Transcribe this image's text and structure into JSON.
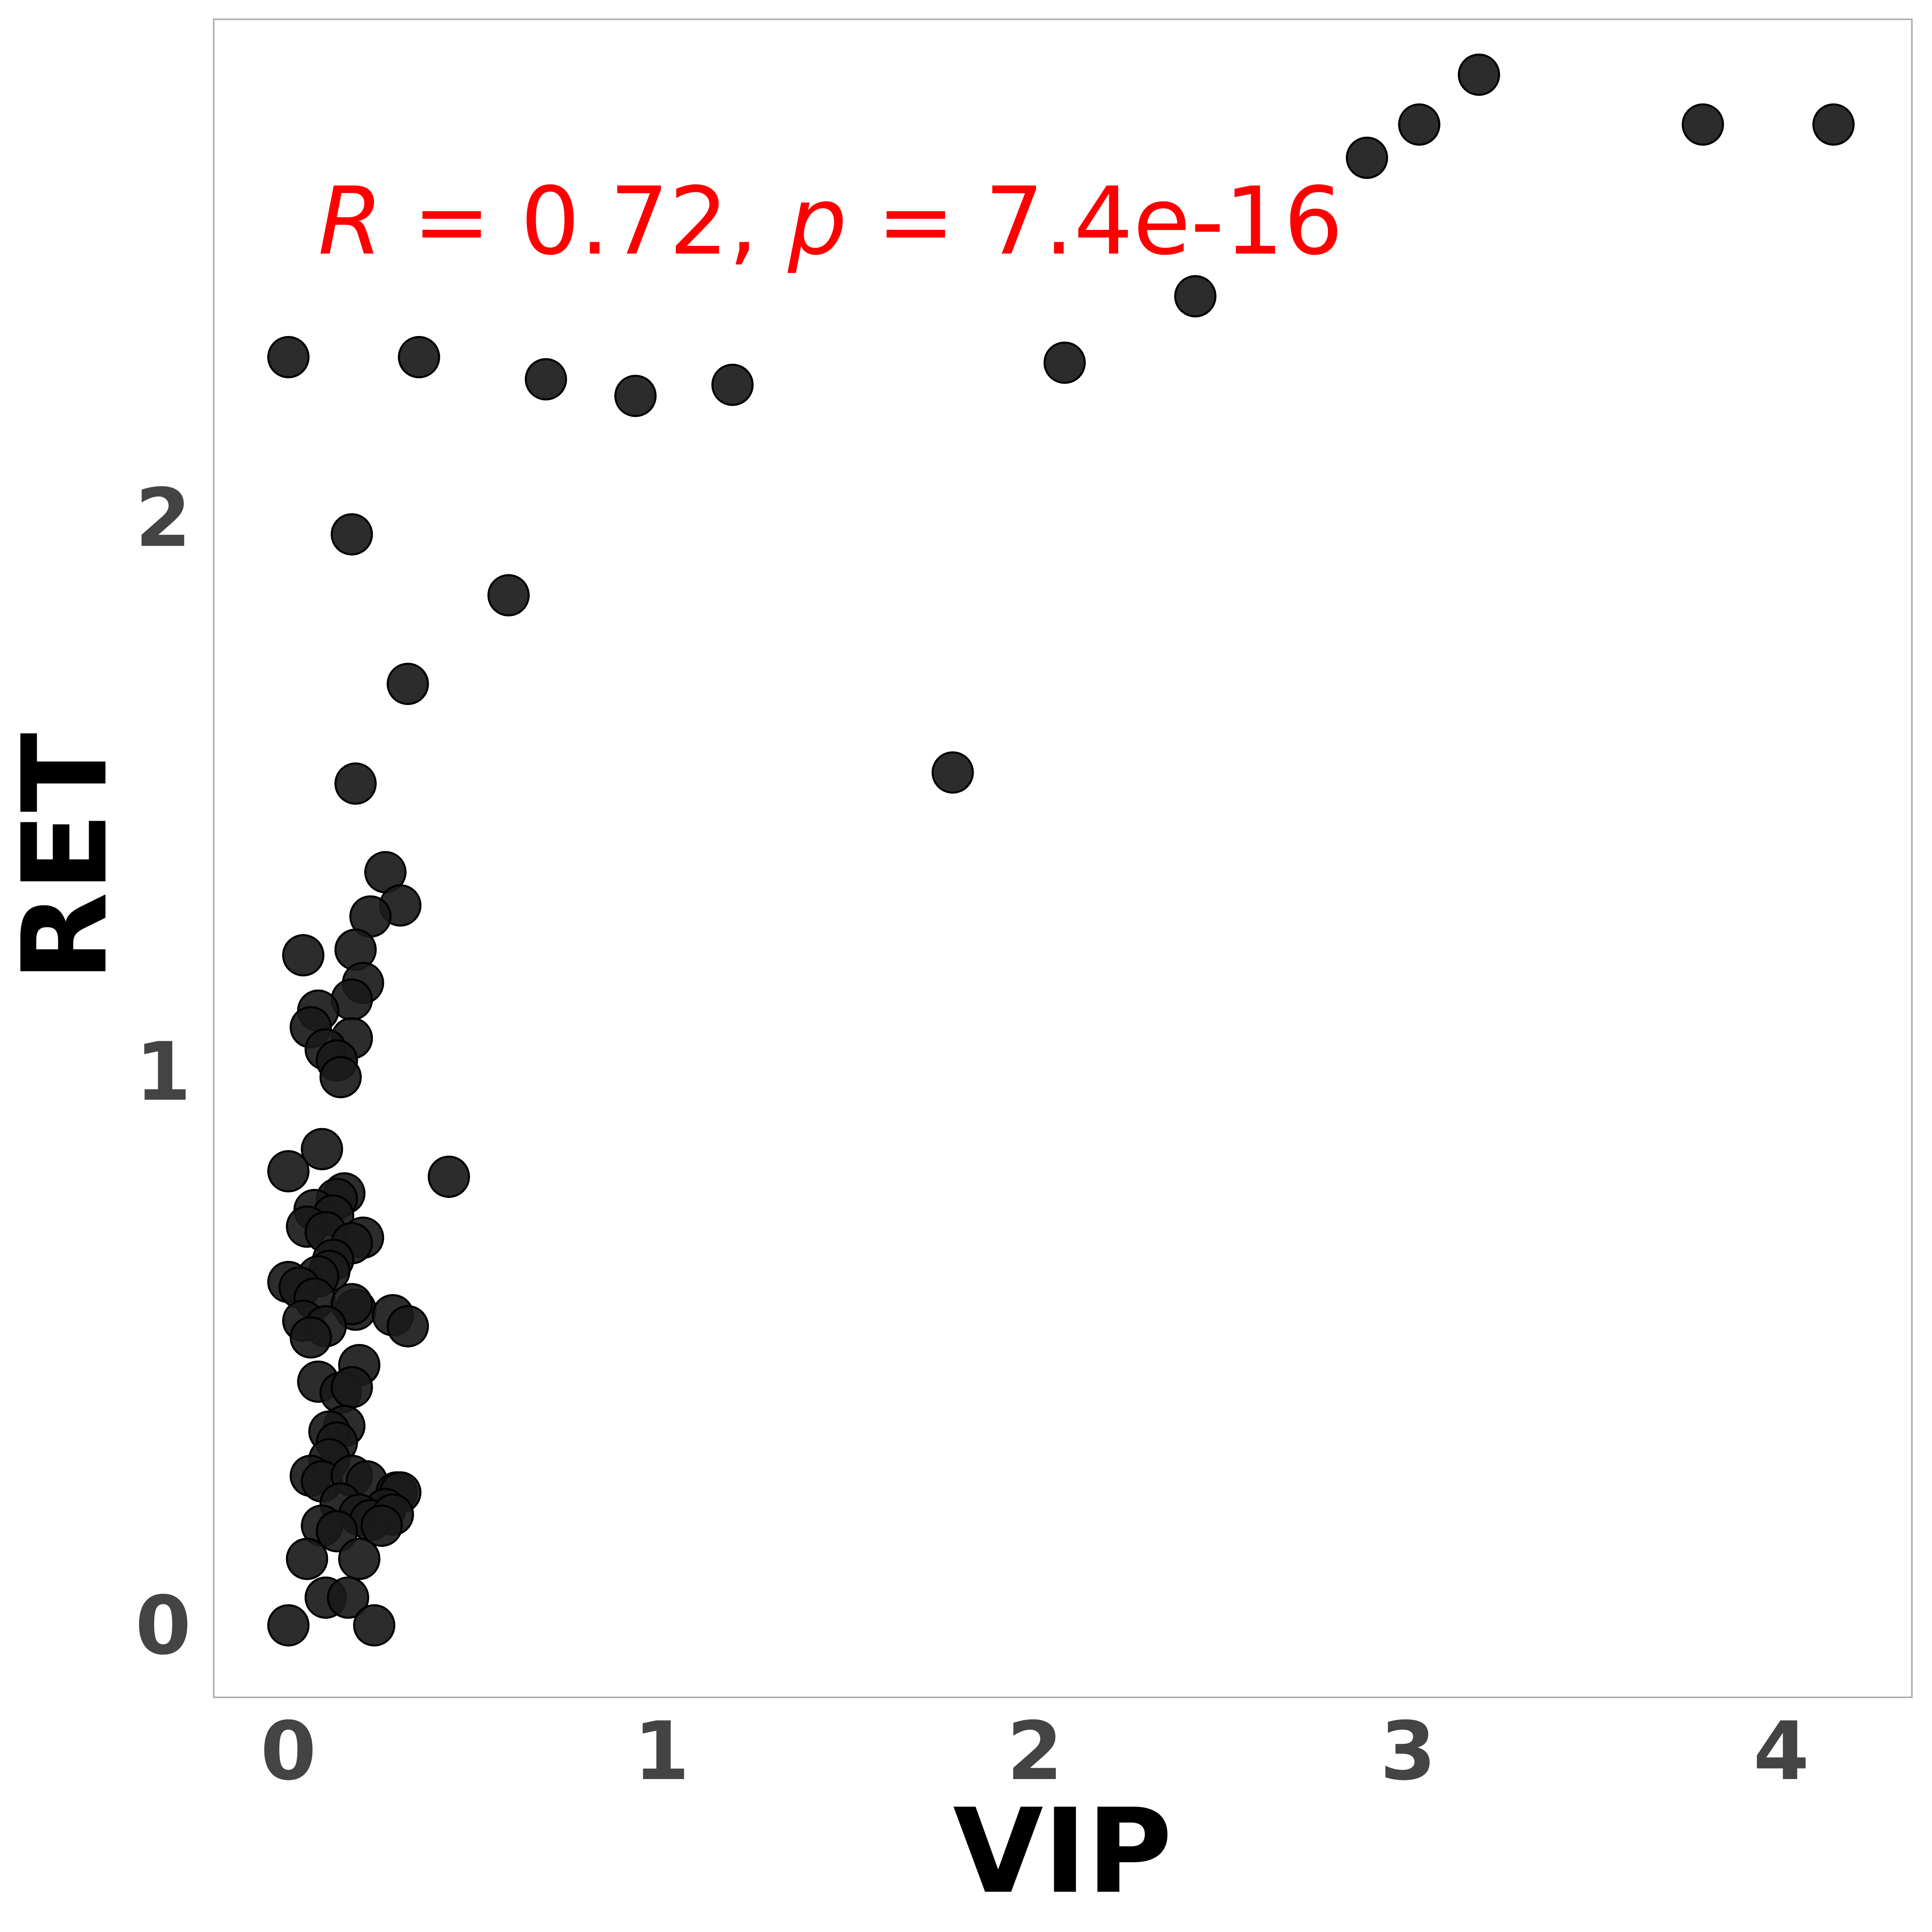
{
  "chart_data": {
    "type": "scatter",
    "title": "",
    "xlabel": "VIP",
    "ylabel": "RET",
    "xlim": [
      -0.2,
      4.35
    ],
    "ylim": [
      -0.13,
      2.9
    ],
    "xticks": [
      0,
      1,
      2,
      3,
      4
    ],
    "yticks": [
      0,
      1,
      2
    ],
    "grid": false,
    "annotation": {
      "r_symbol": "R",
      "r_text": " = 0.72, ",
      "p_symbol": "p",
      "p_text": " = 7.4e-16",
      "color": "#ff0000"
    },
    "point_color": "#1a1a1a",
    "points": [
      [
        0.0,
        2.29
      ],
      [
        0.35,
        2.29
      ],
      [
        0.69,
        2.25
      ],
      [
        0.93,
        2.22
      ],
      [
        1.19,
        2.24
      ],
      [
        2.08,
        2.28
      ],
      [
        2.43,
        2.4
      ],
      [
        2.89,
        2.65
      ],
      [
        3.03,
        2.71
      ],
      [
        3.19,
        2.8
      ],
      [
        3.79,
        2.71
      ],
      [
        4.14,
        2.71
      ],
      [
        0.17,
        1.97
      ],
      [
        0.59,
        1.86
      ],
      [
        0.32,
        1.7
      ],
      [
        0.18,
        1.52
      ],
      [
        1.78,
        1.54
      ],
      [
        0.26,
        1.36
      ],
      [
        0.3,
        1.3
      ],
      [
        0.22,
        1.28
      ],
      [
        0.18,
        1.22
      ],
      [
        0.04,
        1.21
      ],
      [
        0.2,
        1.16
      ],
      [
        0.17,
        1.13
      ],
      [
        0.08,
        1.11
      ],
      [
        0.06,
        1.08
      ],
      [
        0.17,
        1.06
      ],
      [
        0.1,
        1.04
      ],
      [
        0.13,
        1.02
      ],
      [
        0.14,
        0.99
      ],
      [
        0.0,
        0.82
      ],
      [
        0.09,
        0.86
      ],
      [
        0.43,
        0.81
      ],
      [
        0.15,
        0.78
      ],
      [
        0.13,
        0.77
      ],
      [
        0.07,
        0.75
      ],
      [
        0.12,
        0.74
      ],
      [
        0.05,
        0.72
      ],
      [
        0.1,
        0.71
      ],
      [
        0.2,
        0.7
      ],
      [
        0.17,
        0.69
      ],
      [
        0.12,
        0.66
      ],
      [
        0.11,
        0.64
      ],
      [
        0.08,
        0.63
      ],
      [
        0.0,
        0.62
      ],
      [
        0.03,
        0.61
      ],
      [
        0.07,
        0.59
      ],
      [
        0.18,
        0.57
      ],
      [
        0.17,
        0.58
      ],
      [
        0.28,
        0.56
      ],
      [
        0.04,
        0.55
      ],
      [
        0.1,
        0.54
      ],
      [
        0.32,
        0.54
      ],
      [
        0.06,
        0.52
      ],
      [
        0.19,
        0.47
      ],
      [
        0.08,
        0.44
      ],
      [
        0.14,
        0.42
      ],
      [
        0.17,
        0.43
      ],
      [
        0.15,
        0.36
      ],
      [
        0.11,
        0.35
      ],
      [
        0.13,
        0.33
      ],
      [
        0.11,
        0.3
      ],
      [
        0.06,
        0.27
      ],
      [
        0.09,
        0.26
      ],
      [
        0.17,
        0.27
      ],
      [
        0.21,
        0.26
      ],
      [
        0.29,
        0.24
      ],
      [
        0.3,
        0.24
      ],
      [
        0.14,
        0.22
      ],
      [
        0.26,
        0.21
      ],
      [
        0.19,
        0.2
      ],
      [
        0.22,
        0.19
      ],
      [
        0.28,
        0.2
      ],
      [
        0.09,
        0.18
      ],
      [
        0.25,
        0.18
      ],
      [
        0.13,
        0.17
      ],
      [
        0.05,
        0.12
      ],
      [
        0.19,
        0.12
      ],
      [
        0.1,
        0.05
      ],
      [
        0.16,
        0.05
      ],
      [
        0.0,
        0.0
      ],
      [
        0.23,
        0.0
      ]
    ]
  }
}
